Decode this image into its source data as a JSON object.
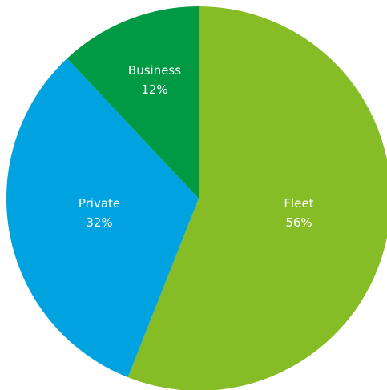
{
  "chart_data": {
    "type": "pie",
    "slices": [
      {
        "label": "Fleet",
        "value": 56,
        "value_label": "56%",
        "color": "#86bc25"
      },
      {
        "label": "Private",
        "value": 32,
        "value_label": "32%",
        "color": "#00a3e0"
      },
      {
        "label": "Business",
        "value": 12,
        "value_label": "12%",
        "color": "#009a44"
      }
    ],
    "start": "12 o'clock",
    "direction": "clockwise",
    "legend": "none"
  }
}
